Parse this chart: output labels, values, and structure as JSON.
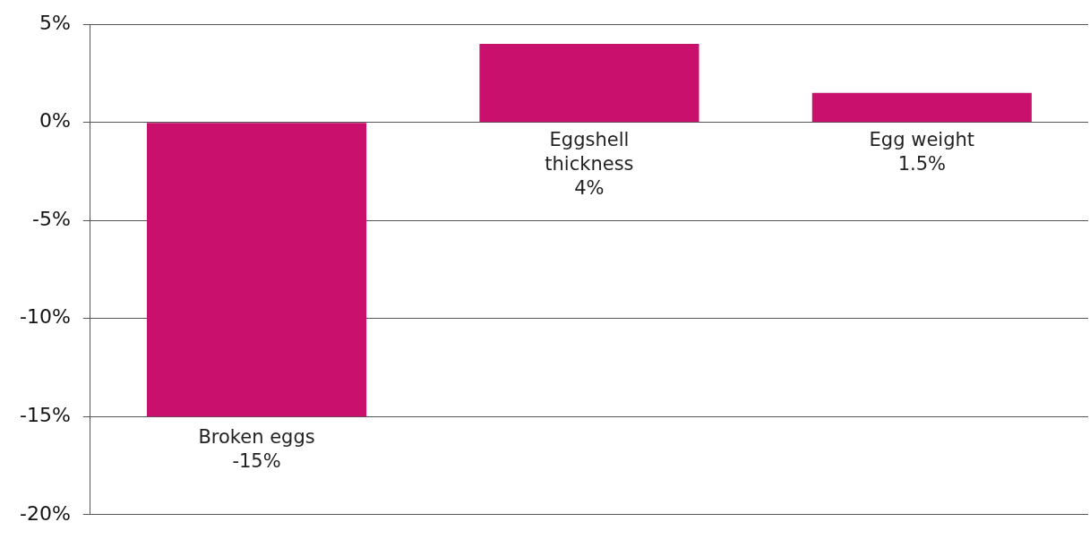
{
  "chart_data": {
    "type": "bar",
    "categories": [
      "Broken eggs",
      "Eggshell thickness",
      "Egg weight"
    ],
    "values": [
      -15,
      4,
      1.5
    ],
    "color": "#c8106c",
    "value_labels": [
      "-15%",
      "4%",
      "1.5%"
    ],
    "ylim": [
      -20,
      5
    ],
    "yticks": [
      {
        "value": -20,
        "label": "-20%"
      },
      {
        "value": -15,
        "label": "-15%"
      },
      {
        "value": -10,
        "label": "-10%"
      },
      {
        "value": -5,
        "label": "-5%"
      },
      {
        "value": 0,
        "label": "0%"
      },
      {
        "value": 5,
        "label": "5%"
      }
    ],
    "grid": "y",
    "legend": false
  }
}
